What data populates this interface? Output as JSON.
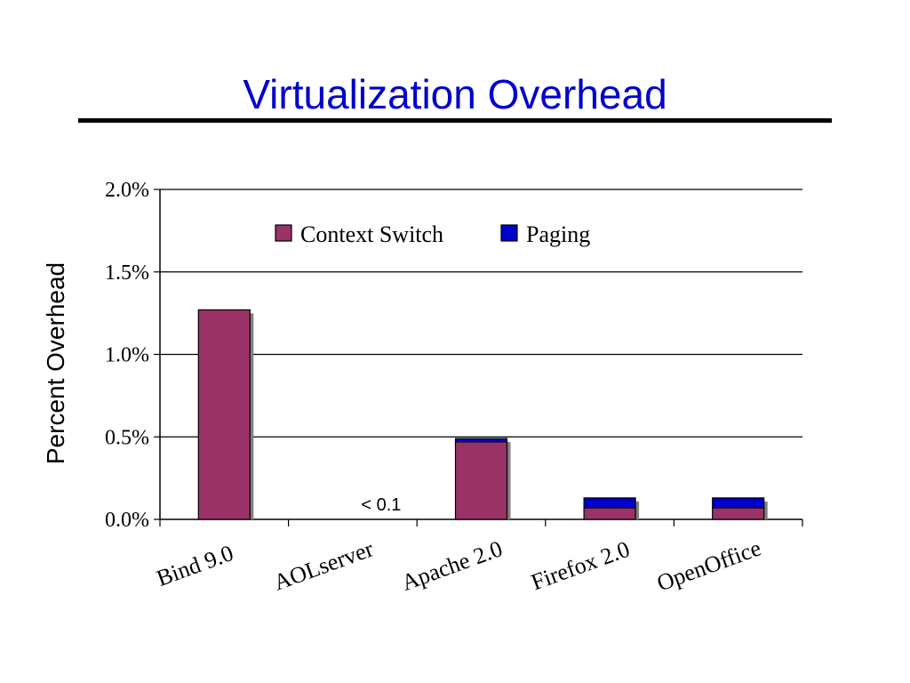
{
  "slide": {
    "title": "Virtualization Overhead"
  },
  "chart_data": {
    "type": "bar",
    "stacked": true,
    "categories": [
      "Bind 9.0",
      "AOLserver",
      "Apache 2.0",
      "Firefox 2.0",
      "OpenOffice"
    ],
    "series": [
      {
        "name": "Context Switch",
        "color": "#993366",
        "values": [
          1.27,
          0.0,
          0.47,
          0.07,
          0.07
        ]
      },
      {
        "name": "Paging",
        "color": "#0000cc",
        "values": [
          0.0,
          0.0,
          0.02,
          0.06,
          0.06
        ]
      }
    ],
    "ylabel": "Percent Overhead",
    "xlabel": "",
    "ylim": [
      0,
      2.0
    ],
    "yticks": [
      0,
      0.5,
      1.0,
      1.5,
      2.0
    ],
    "ytick_labels": [
      "0.0%",
      "0.5%",
      "1.0%",
      "1.5%",
      "2.0%"
    ],
    "grid": true,
    "legend": "top",
    "annotations": [
      {
        "category": "AOLserver",
        "text": "< 0.1"
      }
    ]
  }
}
